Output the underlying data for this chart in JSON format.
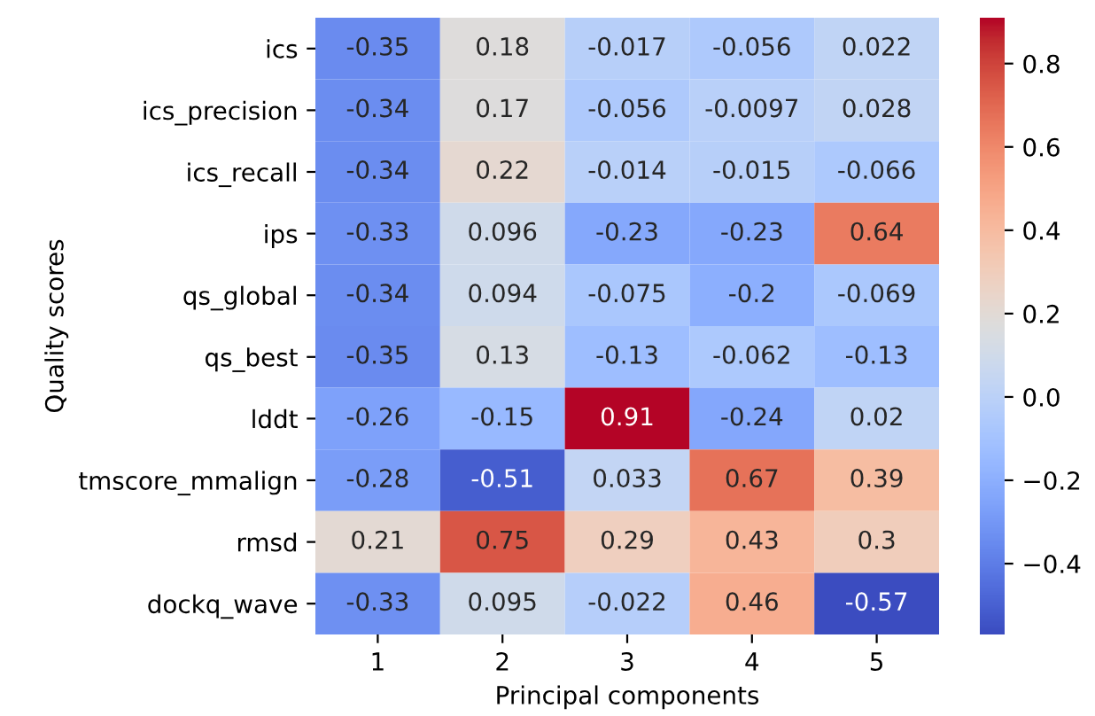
{
  "chart_data": {
    "type": "heatmap",
    "xlabel": "Principal components",
    "ylabel": "Quality scores",
    "categories": [
      "1",
      "2",
      "3",
      "4",
      "5"
    ],
    "y_categories": [
      "ics",
      "ics_precision",
      "ics_recall",
      "ips",
      "qs_global",
      "qs_best",
      "lddt",
      "tmscore_mmalign",
      "rmsd",
      "dockq_wave"
    ],
    "cells": [
      [
        -0.35,
        0.18,
        -0.017,
        -0.056,
        0.022
      ],
      [
        -0.34,
        0.17,
        -0.056,
        -0.0097,
        0.028
      ],
      [
        -0.34,
        0.22,
        -0.014,
        -0.015,
        -0.066
      ],
      [
        -0.33,
        0.096,
        -0.23,
        -0.23,
        0.64
      ],
      [
        -0.34,
        0.094,
        -0.075,
        -0.2,
        -0.069
      ],
      [
        -0.35,
        0.13,
        -0.13,
        -0.062,
        -0.13
      ],
      [
        -0.26,
        -0.15,
        0.91,
        -0.24,
        0.02
      ],
      [
        -0.28,
        -0.51,
        0.033,
        0.67,
        0.39
      ],
      [
        0.21,
        0.75,
        0.29,
        0.43,
        0.3
      ],
      [
        -0.33,
        0.095,
        -0.022,
        0.46,
        -0.57
      ]
    ],
    "clim": [
      -0.57,
      0.91
    ],
    "cticks": [
      -0.4,
      -0.2,
      {
        "value": 0,
        "label": "0.0"
      },
      0.2,
      0.4,
      0.6,
      0.8
    ],
    "data_labels": true
  }
}
